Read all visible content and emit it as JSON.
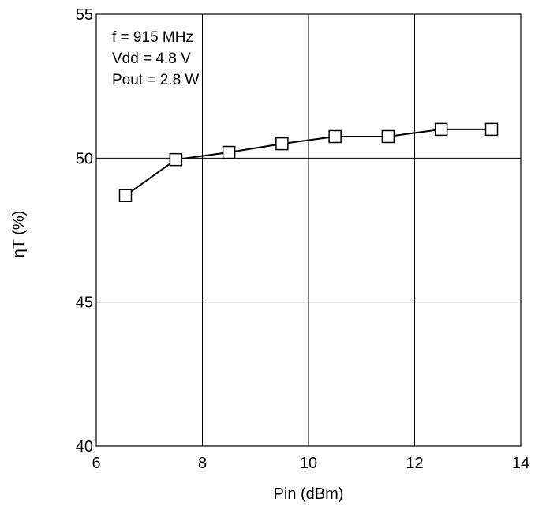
{
  "chart_data": {
    "type": "line",
    "title": "",
    "xlabel": "Pin (dBm)",
    "ylabel": "ηT (%)",
    "xlim": [
      6,
      14
    ],
    "ylim": [
      40,
      55
    ],
    "xticks": [
      6,
      8,
      10,
      12,
      14
    ],
    "yticks": [
      40,
      45,
      50,
      55
    ],
    "grid": true,
    "annotations": [
      "f = 915 MHz",
      "Vdd = 4.8 V",
      "Pout = 2.8 W"
    ],
    "series": [
      {
        "marker": "square",
        "color": "#000000",
        "x": [
          6.55,
          7.5,
          8.5,
          9.5,
          10.5,
          11.5,
          12.5,
          13.45
        ],
        "y": [
          48.7,
          49.95,
          50.2,
          50.5,
          50.75,
          50.75,
          51.0,
          51.0
        ]
      }
    ]
  }
}
